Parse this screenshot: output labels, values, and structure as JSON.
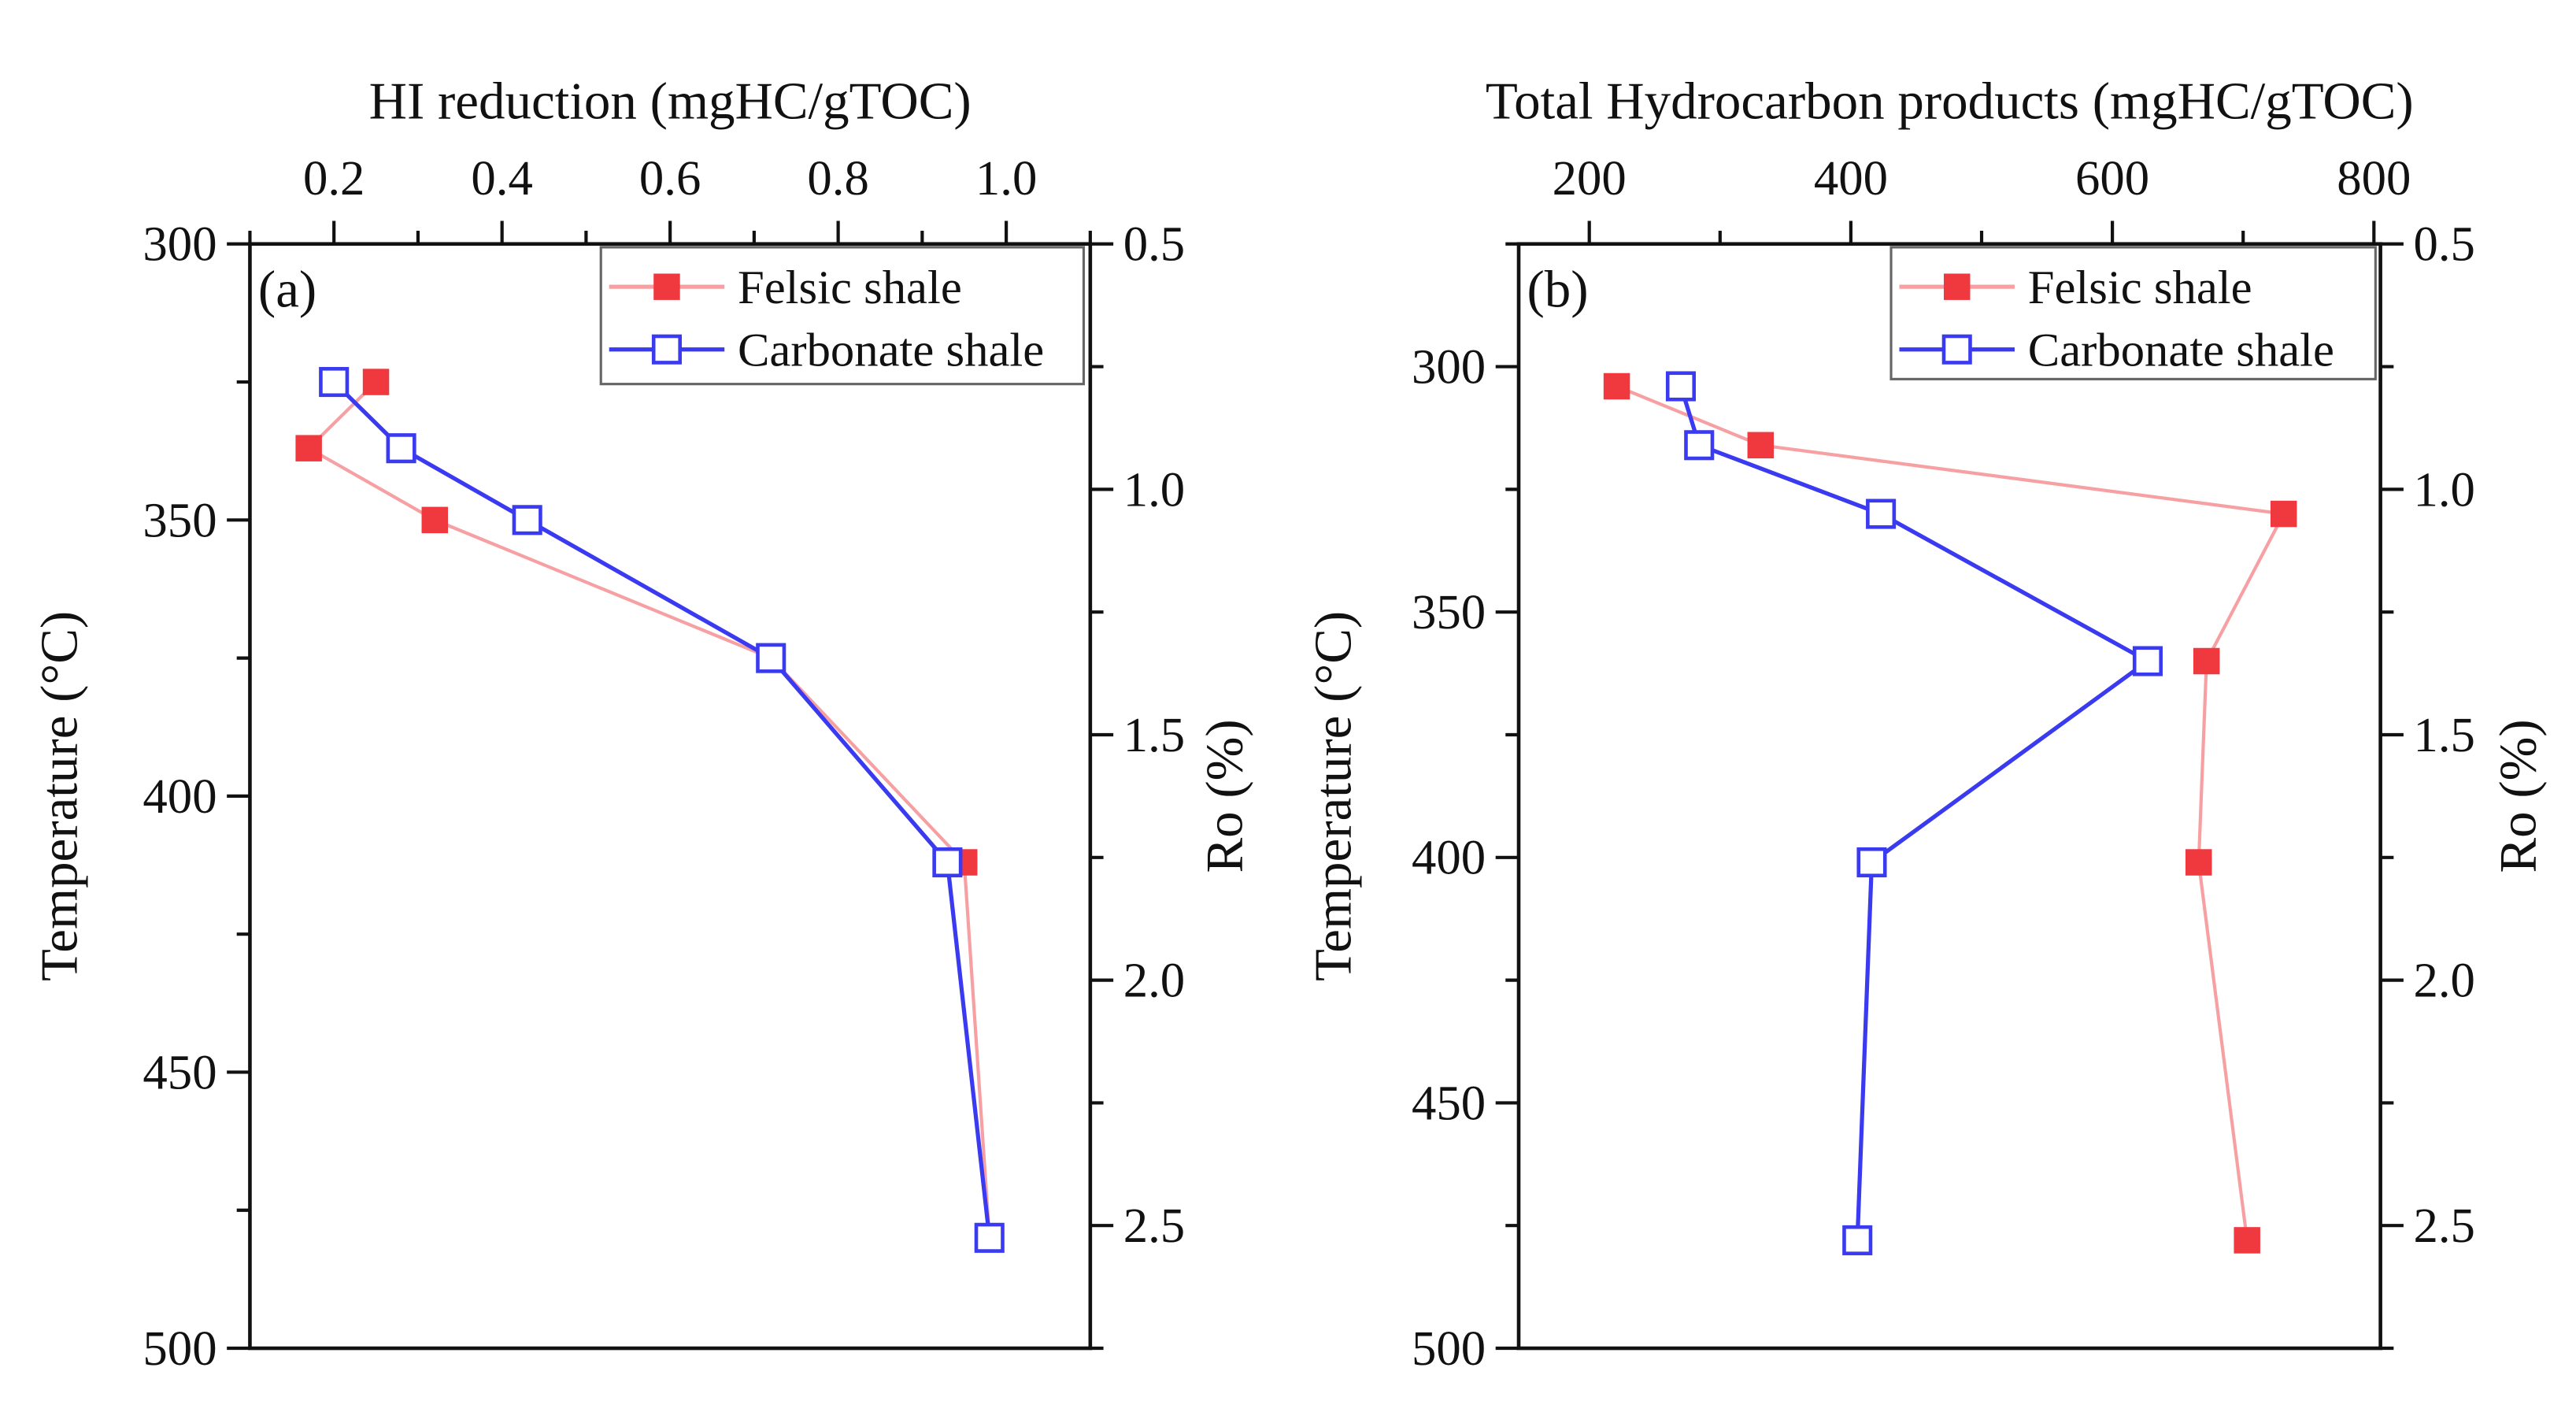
{
  "chart_data": [
    {
      "type": "line",
      "panel_label": "(a)",
      "title": "",
      "xlabel": "HI reduction (mgHC/gTOC)",
      "ylabel": "Temperature (°C)",
      "y2label": "Ro (%)",
      "xlim": [
        0.1,
        1.1
      ],
      "ylim": [
        300,
        500
      ],
      "y2lim": [
        0.5,
        2.75
      ],
      "x_ticks": [
        "0.2",
        "0.4",
        "0.6",
        "0.8",
        "1.0"
      ],
      "x_tick_values": [
        0.2,
        0.4,
        0.6,
        0.8,
        1.0
      ],
      "y_ticks": [
        "300",
        "350",
        "400",
        "450",
        "500"
      ],
      "y_tick_values": [
        300,
        350,
        400,
        450,
        500
      ],
      "y2_ticks": [
        "0.5",
        "1.0",
        "1.5",
        "2.0",
        "2.5"
      ],
      "y2_tick_values": [
        0.5,
        1.0,
        1.5,
        2.0,
        2.5
      ],
      "y_inverted": true,
      "grid": false,
      "legend_position": "top-right",
      "series": [
        {
          "name": "Felsic shale",
          "color": "#f0393f",
          "line_color": "#f7a0a3",
          "marker": "filled-square",
          "x": [
            0.25,
            0.17,
            0.32,
            0.72,
            0.95,
            0.98
          ],
          "y": [
            325,
            337,
            350,
            375,
            412,
            480
          ]
        },
        {
          "name": "Carbonate shale",
          "color": "#3a3af0",
          "line_color": "#3a3af0",
          "marker": "open-square",
          "x": [
            0.2,
            0.28,
            0.43,
            0.72,
            0.93,
            0.98
          ],
          "y": [
            325,
            337,
            350,
            375,
            412,
            480
          ]
        }
      ]
    },
    {
      "type": "line",
      "panel_label": "(b)",
      "title": "",
      "xlabel": "Total Hydrocarbon products (mgHC/gTOC)",
      "ylabel": "Temperature (°C)",
      "y2label": "Ro (%)",
      "xlim": [
        146,
        805
      ],
      "ylim": [
        275,
        500
      ],
      "y2lim": [
        0.5,
        2.75
      ],
      "x_ticks": [
        "200",
        "400",
        "600",
        "800"
      ],
      "x_tick_values": [
        200,
        400,
        600,
        800
      ],
      "y_ticks": [
        "300",
        "350",
        "400",
        "450",
        "500"
      ],
      "y_tick_values": [
        300,
        350,
        400,
        450,
        500
      ],
      "y2_ticks": [
        "0.5",
        "1.0",
        "1.5",
        "2.0",
        "2.5"
      ],
      "y2_tick_values": [
        0.5,
        1.0,
        1.5,
        2.0,
        2.5
      ],
      "y_inverted": true,
      "grid": false,
      "legend_position": "top-right",
      "series": [
        {
          "name": "Felsic shale",
          "color": "#f0393f",
          "line_color": "#f7a0a3",
          "marker": "filled-square",
          "x": [
            221,
            331,
            731,
            672,
            666,
            703
          ],
          "y": [
            304,
            316,
            330,
            360,
            401,
            478
          ]
        },
        {
          "name": "Carbonate shale",
          "color": "#3a3af0",
          "line_color": "#3a3af0",
          "marker": "open-square",
          "x": [
            270,
            284,
            423,
            627,
            416,
            405
          ],
          "y": [
            304,
            316,
            330,
            360,
            401,
            478
          ]
        }
      ]
    }
  ]
}
